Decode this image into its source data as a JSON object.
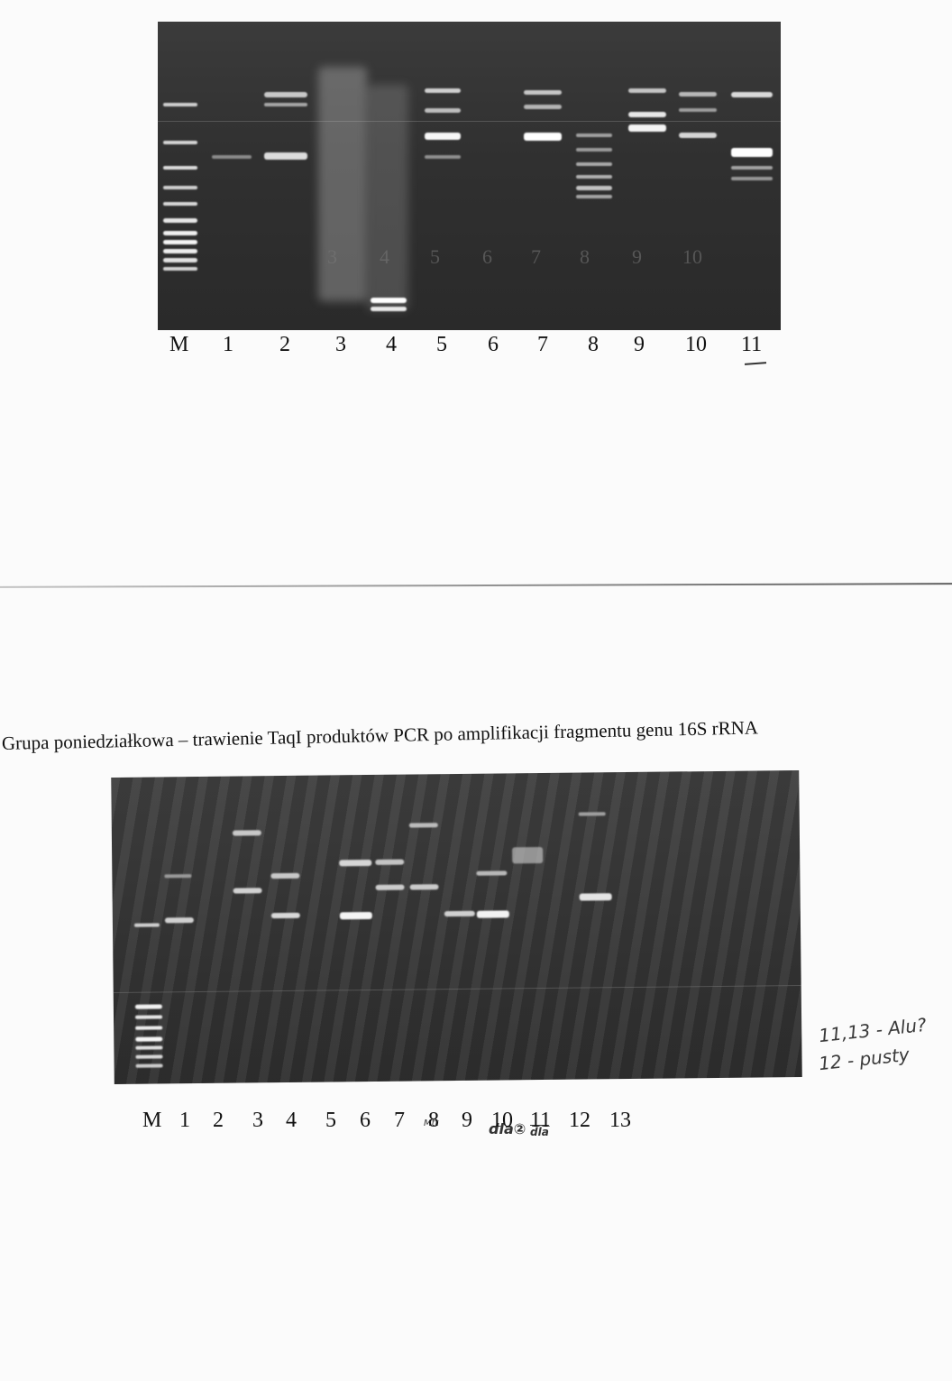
{
  "top_gel": {
    "lane_labels": [
      "M",
      "1",
      "2",
      "3",
      "4",
      "5",
      "6",
      "7",
      "8",
      "9",
      "10",
      "11"
    ],
    "in_gel_numbers": [
      "3",
      "4",
      "5",
      "6",
      "7",
      "8",
      "9",
      "10"
    ]
  },
  "bottom_section": {
    "caption": "Grupa poniedziałkowa – trawienie TaqI produktów PCR po amplifikacji fragmentu genu 16S rRNA",
    "lane_labels": [
      "M",
      "1",
      "2",
      "3",
      "4",
      "5",
      "6",
      "7",
      "8",
      "9",
      "10",
      "11",
      "12",
      "13"
    ],
    "lane_notes": {
      "lane_8": "Mtt",
      "lane_10": "dla②",
      "lane_11": "dla"
    },
    "handwritten_notes": [
      "11,13 - Alu?",
      "12 - pusty"
    ]
  },
  "colors": {
    "gel_background": "#333333",
    "band": "#f2f2f2"
  }
}
